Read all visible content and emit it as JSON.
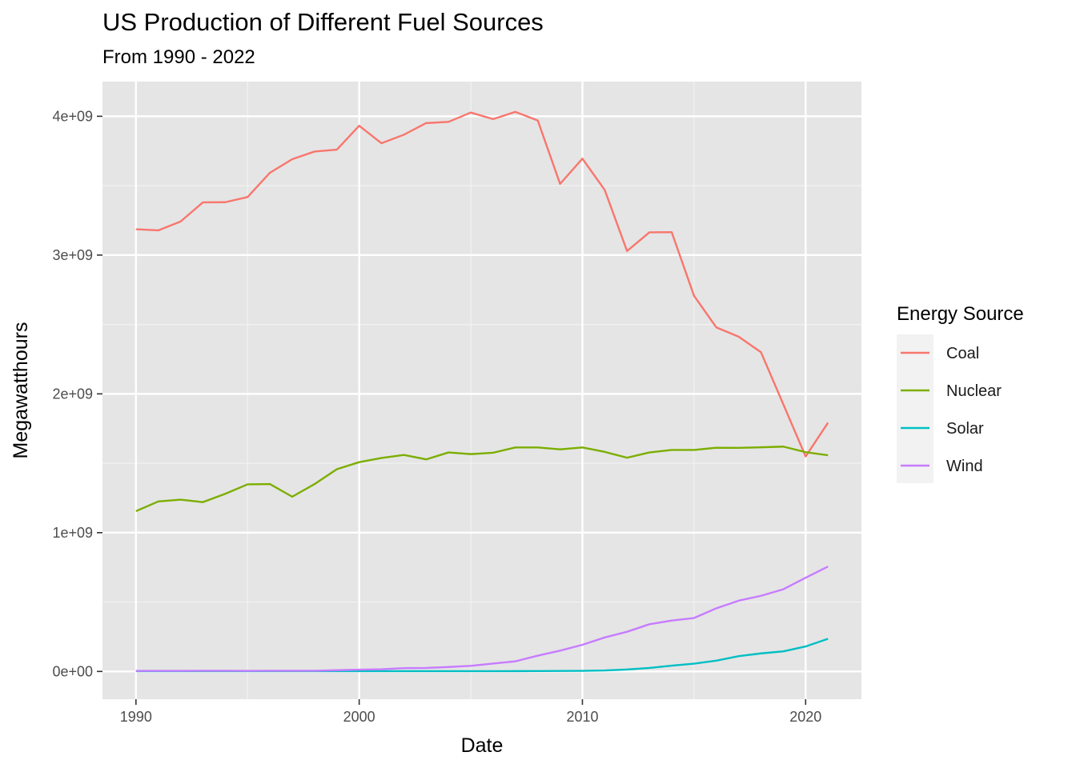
{
  "chart_data": {
    "type": "line",
    "title": "US Production of Different Fuel Sources",
    "subtitle": "From 1990 - 2022",
    "xlabel": "Date",
    "ylabel": "Megawatthours",
    "xlim": [
      1988.5,
      2022.5
    ],
    "ylim": [
      -200000000.0,
      4250000000.0
    ],
    "x_ticks": [
      1990,
      2000,
      2010,
      2020
    ],
    "x_tick_labels": [
      "1990",
      "2000",
      "2010",
      "2020"
    ],
    "y_ticks": [
      0,
      1000000000,
      2000000000,
      3000000000,
      4000000000
    ],
    "y_tick_labels": [
      "0e+00",
      "1e+09",
      "2e+09",
      "3e+09",
      "4e+09"
    ],
    "grid": true,
    "legend": {
      "title": "Energy Source",
      "position": "right"
    },
    "x": [
      1990,
      1991,
      1992,
      1993,
      1994,
      1995,
      1996,
      1997,
      1998,
      1999,
      2000,
      2001,
      2002,
      2003,
      2004,
      2005,
      2006,
      2007,
      2008,
      2009,
      2010,
      2011,
      2012,
      2013,
      2014,
      2015,
      2016,
      2017,
      2018,
      2019,
      2020,
      2021
    ],
    "series": [
      {
        "name": "Coal",
        "color": "#F8766D",
        "values": [
          3186000000,
          3178000000,
          3242000000,
          3380000000,
          3381000000,
          3418000000,
          3593000000,
          3691000000,
          3746000000,
          3760000000,
          3932000000,
          3806000000,
          3867000000,
          3951000000,
          3960000000,
          4027000000,
          3980000000,
          4032000000,
          3970000000,
          3513000000,
          3695000000,
          3469000000,
          3029000000,
          3164000000,
          3165000000,
          2707000000,
          2479000000,
          2412000000,
          2300000000,
          1925000000,
          1549000000,
          1792000000
        ]
      },
      {
        "name": "Nuclear",
        "color": "#7CAE00",
        "values": [
          1155000000,
          1225000000,
          1238000000,
          1220000000,
          1280000000,
          1348000000,
          1350000000,
          1259000000,
          1350000000,
          1457000000,
          1508000000,
          1538000000,
          1560000000,
          1528000000,
          1578000000,
          1566000000,
          1576000000,
          1614000000,
          1614000000,
          1600000000,
          1614000000,
          1582000000,
          1540000000,
          1578000000,
          1596000000,
          1596000000,
          1612000000,
          1611000000,
          1615000000,
          1620000000,
          1580000000,
          1558000000
        ]
      },
      {
        "name": "Solar",
        "color": "#00BFC4",
        "values": [
          2000000,
          2000000,
          2000000,
          2000000,
          2000000,
          2000000,
          2000000,
          2000000,
          2000000,
          2000000,
          2000000,
          2000000,
          2000000,
          2000000,
          2000000,
          2000000,
          2000000,
          2500000,
          3000000,
          3500000,
          4500000,
          7000000,
          14000000,
          25000000,
          42000000,
          56000000,
          78000000,
          110000000,
          130000000,
          145000000,
          180000000,
          235000000
        ]
      },
      {
        "name": "Wind",
        "color": "#C77CFF",
        "values": [
          4000000,
          4000000,
          4000000,
          5000000,
          5000000,
          4500000,
          5000000,
          5000000,
          5000000,
          9000000,
          13000000,
          16000000,
          24000000,
          25000000,
          32000000,
          40000000,
          57000000,
          73000000,
          114000000,
          150000000,
          192000000,
          245000000,
          286000000,
          340000000,
          367000000,
          385000000,
          455000000,
          510000000,
          545000000,
          592000000,
          675000000,
          756000000
        ]
      }
    ]
  }
}
